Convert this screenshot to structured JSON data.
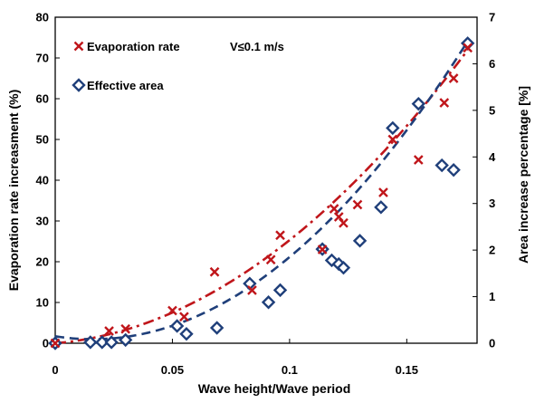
{
  "chart_data": {
    "type": "scatter",
    "title": "",
    "annotation": "V≤0.1 m/s",
    "xlabel": "Wave height/Wave period",
    "ylabel": "Evaporation rate increasment (%)",
    "y2label": "Area increase percentage [%]",
    "xlim": [
      0,
      0.18
    ],
    "ylim": [
      0,
      80
    ],
    "y2lim": [
      0,
      7
    ],
    "x_ticks": [
      "0",
      "0.05",
      "0.1",
      "0.15"
    ],
    "y_ticks": [
      "0",
      "10",
      "20",
      "30",
      "40",
      "50",
      "60",
      "70",
      "80"
    ],
    "y2_ticks": [
      "0",
      "1",
      "2",
      "3",
      "4",
      "5",
      "6",
      "7"
    ],
    "grid": false,
    "legend_position": "top-left",
    "colors": {
      "evaporation": "#c0161b",
      "area": "#1f3f7a"
    },
    "series": [
      {
        "name": "Evaporation rate",
        "axis": "left",
        "marker": "x",
        "x": [
          0,
          0.023,
          0.03,
          0.05,
          0.055,
          0.068,
          0.084,
          0.092,
          0.096,
          0.114,
          0.119,
          0.121,
          0.123,
          0.129,
          0.14,
          0.144,
          0.155,
          0.166,
          0.17,
          0.176
        ],
        "y": [
          0,
          3,
          3.5,
          8,
          6.5,
          17.5,
          13,
          20.5,
          26.5,
          23,
          33,
          31,
          29.5,
          34,
          37,
          50,
          45,
          59,
          65,
          72.5
        ]
      },
      {
        "name": "Effective area",
        "axis": "right",
        "marker": "diamond",
        "x": [
          0,
          0.015,
          0.02,
          0.024,
          0.03,
          0.052,
          0.056,
          0.069,
          0.083,
          0.091,
          0.096,
          0.114,
          0.118,
          0.121,
          0.123,
          0.13,
          0.139,
          0.144,
          0.155,
          0.165,
          0.17,
          0.176
        ],
        "y": [
          0,
          0.02,
          0.02,
          0.02,
          0.07,
          0.37,
          0.2,
          0.33,
          1.28,
          0.88,
          1.14,
          2.02,
          1.78,
          1.7,
          1.62,
          2.2,
          2.92,
          4.62,
          5.14,
          3.82,
          3.72,
          6.44
        ]
      }
    ],
    "trendlines": [
      {
        "series": "Evaporation rate",
        "axis": "left",
        "style": "dash-dot",
        "coeffs": [
          0,
          48,
          2050
        ]
      },
      {
        "series": "Effective area",
        "axis": "right",
        "style": "dashed",
        "coeffs": [
          0.15,
          -8,
          250
        ]
      }
    ]
  }
}
